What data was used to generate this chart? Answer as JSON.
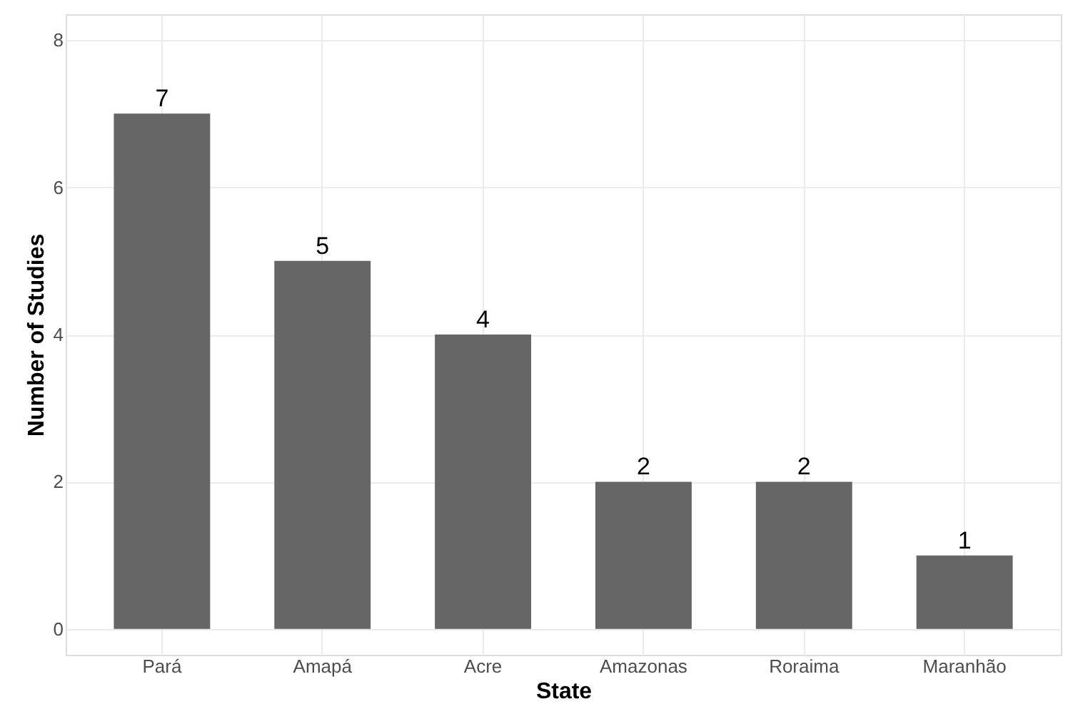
{
  "chart_data": {
    "type": "bar",
    "xlabel": "State",
    "ylabel": "Number of Studies",
    "categories": [
      "Pará",
      "Amapá",
      "Acre",
      "Amazonas",
      "Roraima",
      "Maranhão"
    ],
    "values": [
      7,
      5,
      4,
      2,
      2,
      1
    ],
    "color": "#666666",
    "ylim": [
      -0.35,
      8.35
    ],
    "yticks": [
      0,
      2,
      4,
      6,
      8
    ],
    "grid": true,
    "data_labels": true
  }
}
